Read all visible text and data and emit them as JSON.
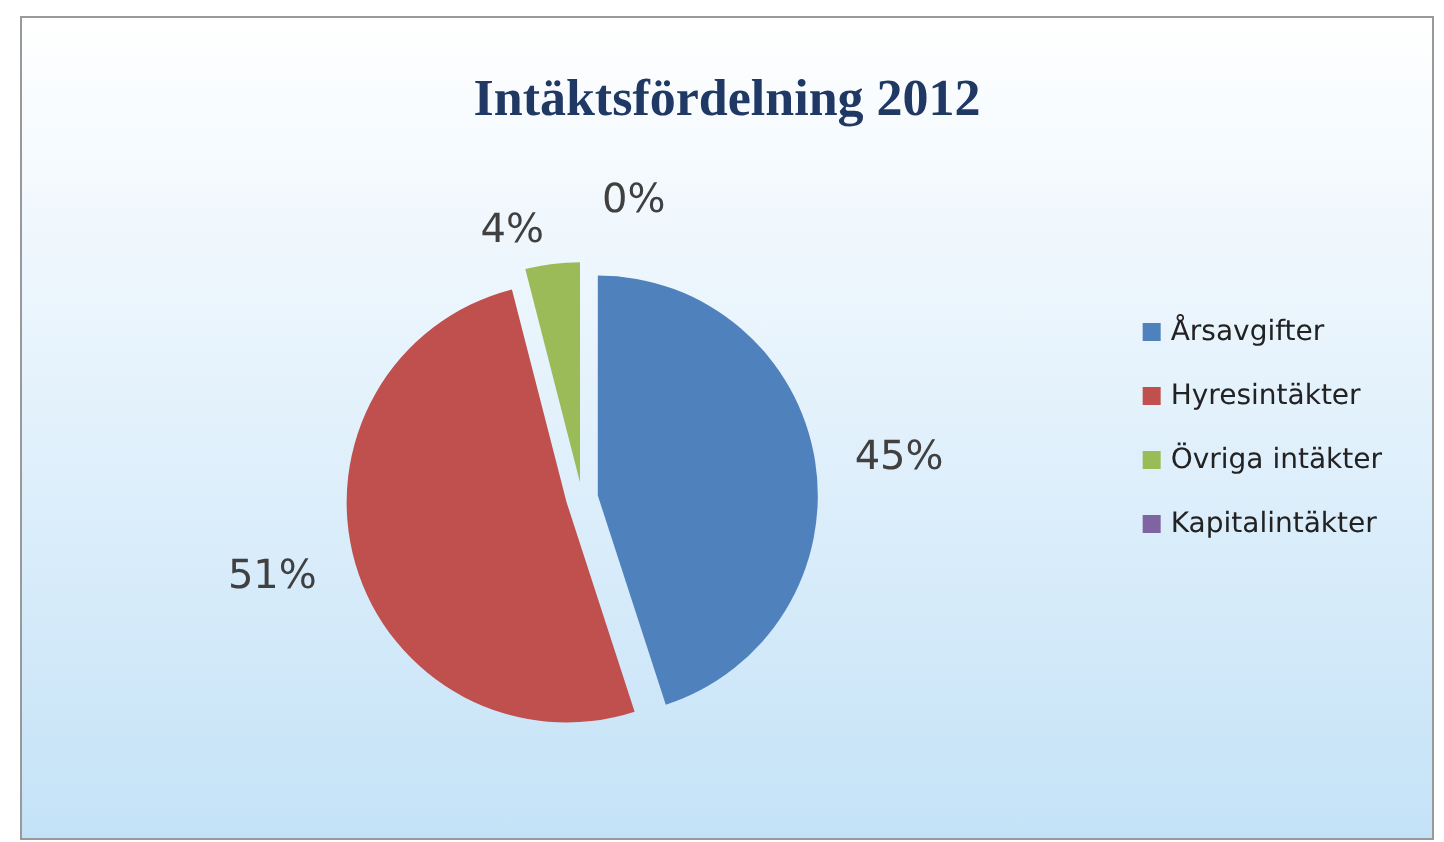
{
  "chart_data": {
    "type": "pie",
    "title": "Intäktsfördelning 2012",
    "categories": [
      "Årsavgifter",
      "Hyresintäkter",
      "Övriga intäkter",
      "Kapitalintäkter"
    ],
    "values": [
      45,
      51,
      4,
      0
    ],
    "colors": [
      "#4f81bd",
      "#c0504d",
      "#9bbb59",
      "#8064a2"
    ],
    "value_labels": [
      "45%",
      "51%",
      "4%",
      "0%"
    ],
    "legend": "right"
  }
}
